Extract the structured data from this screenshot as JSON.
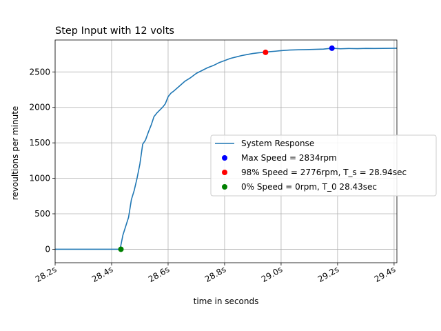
{
  "chart_data": {
    "type": "line",
    "title": "Step Input with 12 volts",
    "xlabel": "time in seconds",
    "ylabel": "revoultions per minute",
    "xlim": [
      28.2,
      29.41
    ],
    "ylim": [
      -190,
      2950
    ],
    "x_ticks": [
      28.2,
      28.4,
      28.6,
      28.8,
      29.0,
      29.2,
      29.4
    ],
    "x_tick_labels": [
      "28.2s",
      "28.4s",
      "28.6s",
      "28.8s",
      "29.0s",
      "29.2s",
      "29.4s"
    ],
    "y_ticks": [
      0,
      500,
      1000,
      1500,
      2000,
      2500
    ],
    "y_tick_labels": [
      "0",
      "500",
      "1000",
      "1500",
      "2000",
      "2500"
    ],
    "grid": true,
    "legend_placement": "center-right",
    "series": [
      {
        "name": "System Response",
        "color": "#1f77b4",
        "x": [
          28.2,
          28.3,
          28.43,
          28.44,
          28.46,
          28.47,
          28.48,
          28.49,
          28.5,
          28.51,
          28.52,
          28.53,
          28.54,
          28.55,
          28.56,
          28.57,
          28.58,
          28.59,
          28.6,
          28.61,
          28.62,
          28.64,
          28.66,
          28.68,
          28.7,
          28.72,
          28.74,
          28.76,
          28.78,
          28.8,
          28.82,
          28.84,
          28.86,
          28.88,
          28.9,
          28.92,
          28.94,
          28.96,
          28.98,
          29.0,
          29.03,
          29.06,
          29.09,
          29.12,
          29.15,
          29.18,
          29.21,
          29.24,
          29.27,
          29.3,
          29.33,
          29.36,
          29.39,
          29.41
        ],
        "y": [
          0,
          0,
          0,
          200,
          450,
          700,
          830,
          1000,
          1200,
          1480,
          1540,
          1650,
          1750,
          1870,
          1920,
          1960,
          2000,
          2050,
          2150,
          2200,
          2230,
          2300,
          2370,
          2420,
          2480,
          2520,
          2560,
          2590,
          2630,
          2660,
          2690,
          2710,
          2730,
          2745,
          2760,
          2770,
          2776,
          2785,
          2792,
          2800,
          2808,
          2812,
          2815,
          2818,
          2822,
          2834,
          2826,
          2830,
          2828,
          2832,
          2830,
          2832,
          2833,
          2834
        ]
      },
      {
        "name": "Max Speed = 2834rpm",
        "type": "scatter",
        "color": "#0000ff",
        "x": [
          29.18
        ],
        "y": [
          2834
        ]
      },
      {
        "name": "98% Speed = 2776rpm, T_s = 28.94sec",
        "type": "scatter",
        "color": "#ff0000",
        "x": [
          28.945
        ],
        "y": [
          2776
        ]
      },
      {
        "name": "0% Speed = 0rpm, T_0 28.43sec",
        "type": "scatter",
        "color": "#008000",
        "x": [
          28.433
        ],
        "y": [
          0
        ]
      }
    ]
  }
}
